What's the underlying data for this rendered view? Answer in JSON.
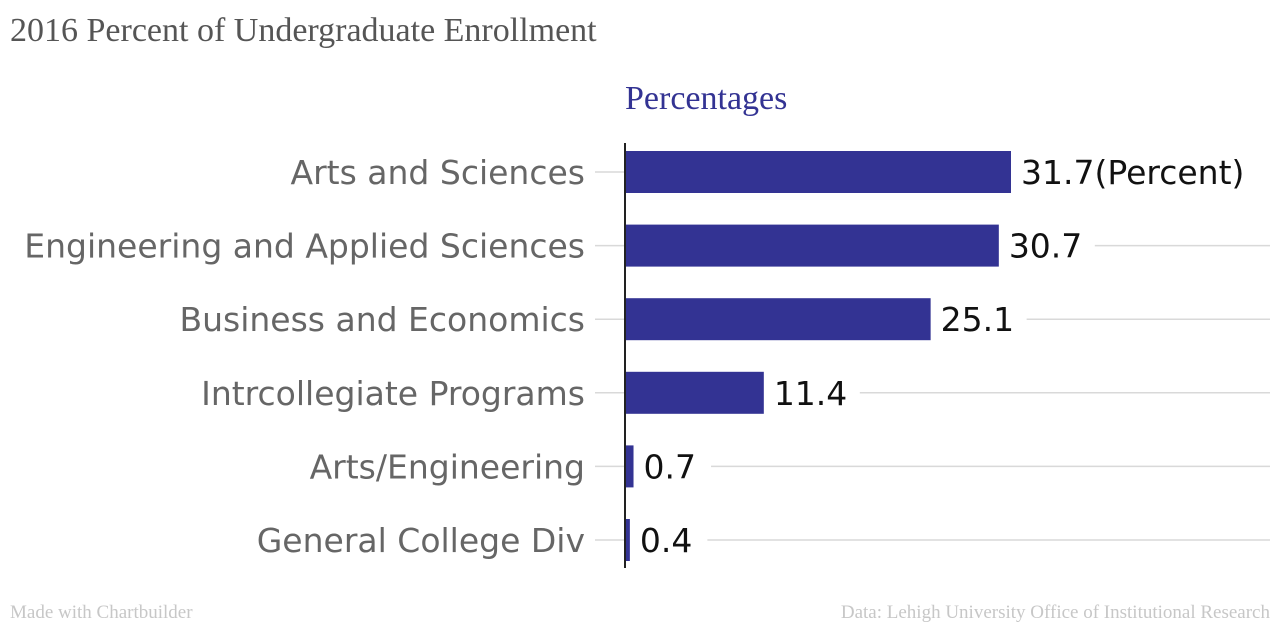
{
  "title": "2016 Percent of Undergraduate Enrollment",
  "footer": {
    "left": "Made with Chartbuilder",
    "right": "Data: Lehigh University Office of Institutional Research"
  },
  "chart_data": {
    "type": "bar",
    "orientation": "horizontal",
    "categories": [
      "Arts and Sciences",
      "Engineering and Applied Sciences",
      "Business and Economics",
      "Intrcollegiate Programs",
      "Arts/Engineering",
      "General College Div"
    ],
    "series": [
      {
        "name": "Percentages",
        "values": [
          31.7,
          30.7,
          25.1,
          11.4,
          0.7,
          0.4
        ],
        "color": "#333393"
      }
    ],
    "value_labels": [
      "31.7(Percent)",
      "30.7",
      "25.1",
      "11.4",
      "0.7",
      "0.4"
    ],
    "xlim": [
      0,
      32
    ],
    "grid": true
  }
}
